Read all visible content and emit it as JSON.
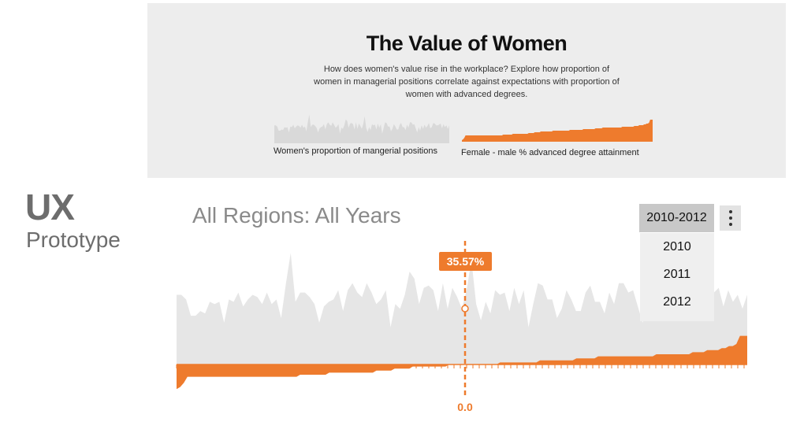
{
  "header": {
    "title": "The Value of Women",
    "description": "How does women's value rise in the workplace? Explore how proportion of women in managerial positions correlate against expectations with proportion of women with advanced degrees.",
    "spark_left_label": "Women's proportion of mangerial positions",
    "spark_right_label": "Female - male % advanced degree attainment"
  },
  "ux": {
    "title": "UX",
    "subtitle": "Prototype"
  },
  "main": {
    "region_title": "All Regions: All Years",
    "year_selected": "2010-2012",
    "year_options": [
      "2010",
      "2011",
      "2012"
    ],
    "marker_value": "35.57%",
    "axis_zero_label": "0.0"
  },
  "colors": {
    "accent": "#ee7b2d",
    "area_gray": "#e6e6e6",
    "panel_bg": "#ededed"
  },
  "icons": {
    "more": "more-vertical-icon"
  },
  "chart_data": {
    "type": "area",
    "series": [
      {
        "values": [
          30,
          30,
          28,
          21,
          21,
          23,
          22,
          27,
          26,
          27,
          18,
          28,
          27,
          31,
          25,
          28,
          30,
          29,
          26,
          31,
          26,
          28,
          20,
          35,
          48,
          27,
          31,
          31,
          29,
          26,
          18,
          25,
          27,
          28,
          32,
          23,
          32,
          35,
          31,
          29,
          35,
          31,
          26,
          28,
          32,
          16,
          26,
          24,
          30,
          40,
          37,
          26,
          33,
          34,
          32,
          23,
          35,
          24,
          33,
          29,
          24,
          32,
          45,
          26,
          19,
          27,
          22,
          32,
          30,
          31,
          23,
          33,
          26,
          32,
          16,
          26,
          35,
          34,
          28,
          28,
          20,
          24,
          32,
          28,
          23,
          23,
          31,
          34,
          27,
          27,
          22,
          31,
          26,
          35,
          35,
          31,
          32,
          25,
          18,
          27,
          21,
          30,
          24,
          31,
          26,
          29,
          34,
          25,
          27,
          34,
          33,
          30,
          30,
          31,
          33,
          25,
          32,
          27,
          30,
          24,
          30
        ]
      },
      {
        "values": [
          -12,
          -11,
          -9,
          -6,
          -6,
          -6,
          -6,
          -6,
          -6,
          -6,
          -6,
          -6,
          -6,
          -6,
          -6,
          -6,
          -6,
          -6,
          -6,
          -6,
          -6,
          -6,
          -6,
          -6,
          -6,
          -6,
          -6,
          -6,
          -6,
          -6,
          -6,
          -6,
          -6,
          -6,
          -5,
          -5,
          -5,
          -5,
          -5,
          -5,
          -5,
          -5,
          -4,
          -4,
          -4,
          -4,
          -4,
          -4,
          -4,
          -4,
          -4,
          -4,
          -4,
          -4,
          -4,
          -3,
          -3,
          -3,
          -3,
          -3,
          -2,
          -2,
          -2,
          -2,
          -2,
          -1,
          -1,
          -1,
          -1,
          -1,
          -1,
          -1,
          -1,
          -1,
          -1,
          0,
          0,
          0,
          0,
          0,
          0,
          0,
          0,
          0,
          0,
          0,
          0,
          0,
          0,
          1,
          1,
          1,
          1,
          1,
          1,
          1,
          1,
          1,
          1,
          1,
          2,
          2,
          2,
          2,
          2,
          2,
          2,
          2,
          2,
          2,
          3,
          3,
          3,
          3,
          3,
          3,
          4,
          4,
          4,
          4,
          4,
          4,
          4,
          4,
          4,
          4,
          4,
          4,
          4,
          4,
          4,
          4,
          5,
          5,
          5,
          5,
          5,
          5,
          5,
          5,
          5,
          5,
          6,
          6,
          6,
          6,
          7,
          7,
          7,
          7,
          8,
          8,
          9,
          9,
          10,
          14,
          14,
          14
        ]
      }
    ],
    "y_gray_range": [
      0,
      50
    ],
    "y_orange_range": [
      -14,
      14
    ]
  }
}
